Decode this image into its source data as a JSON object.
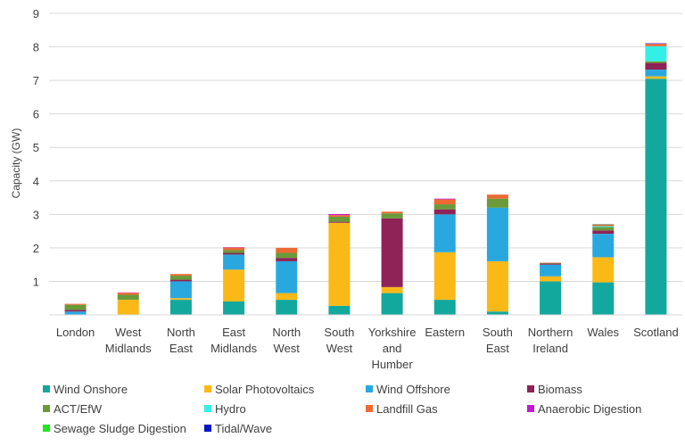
{
  "chart_data": {
    "type": "bar",
    "stacked": true,
    "title": "",
    "xlabel": "",
    "ylabel": "Capacity (GW)",
    "ylim": [
      0,
      9
    ],
    "yticks": [
      1,
      2,
      3,
      4,
      5,
      6,
      7,
      8,
      9
    ],
    "grid": true,
    "legend_position": "bottom",
    "categories": [
      [
        "London"
      ],
      [
        "West",
        "Midlands"
      ],
      [
        "North",
        "East"
      ],
      [
        "East",
        "Midlands"
      ],
      [
        "North",
        "West"
      ],
      [
        "South",
        "West"
      ],
      [
        "Yorkshire",
        "and",
        "Humber"
      ],
      [
        "Eastern"
      ],
      [
        "South",
        "East"
      ],
      [
        "Northern",
        "Ireland"
      ],
      [
        "Wales"
      ],
      [
        "Scotland"
      ]
    ],
    "series": [
      {
        "name": "Wind Onshore",
        "color": "#13a89e",
        "values": [
          0.0,
          0.0,
          0.45,
          0.4,
          0.45,
          0.27,
          0.65,
          0.45,
          0.1,
          1.0,
          0.97,
          7.05
        ]
      },
      {
        "name": "Solar Photovoltaics",
        "color": "#fbb917",
        "values": [
          0.0,
          0.45,
          0.05,
          0.95,
          0.2,
          2.48,
          0.18,
          1.42,
          1.5,
          0.15,
          0.75,
          0.07
        ]
      },
      {
        "name": "Wind Offshore",
        "color": "#29a8e0",
        "values": [
          0.1,
          0.0,
          0.5,
          0.45,
          0.95,
          0.0,
          0.0,
          1.13,
          1.6,
          0.35,
          0.7,
          0.2
        ]
      },
      {
        "name": "Biomass",
        "color": "#8e2357",
        "values": [
          0.05,
          0.0,
          0.05,
          0.05,
          0.1,
          0.03,
          2.05,
          0.15,
          0.0,
          0.03,
          0.1,
          0.2
        ]
      },
      {
        "name": "ACT/EfW",
        "color": "#6a9a3a",
        "values": [
          0.15,
          0.15,
          0.12,
          0.08,
          0.15,
          0.15,
          0.15,
          0.15,
          0.27,
          0.02,
          0.1,
          0.05
        ]
      },
      {
        "name": "Hydro",
        "color": "#33f0e6",
        "values": [
          0.0,
          0.0,
          0.0,
          0.0,
          0.0,
          0.0,
          0.0,
          0.0,
          0.0,
          0.0,
          0.03,
          0.45
        ]
      },
      {
        "name": "Landfill Gas",
        "color": "#ec6a34",
        "values": [
          0.03,
          0.06,
          0.05,
          0.08,
          0.15,
          0.05,
          0.05,
          0.15,
          0.12,
          0.01,
          0.04,
          0.07
        ]
      },
      {
        "name": "Anaerobic Digestion",
        "color": "#c21ad4",
        "values": [
          0.0,
          0.01,
          0.0,
          0.01,
          0.0,
          0.03,
          0.0,
          0.02,
          0.0,
          0.0,
          0.01,
          0.01
        ]
      },
      {
        "name": "Sewage Sludge Digestion",
        "color": "#1fe81f",
        "values": [
          0.0,
          0.0,
          0.0,
          0.0,
          0.0,
          0.0,
          0.0,
          0.0,
          0.0,
          0.0,
          0.01,
          0.0
        ]
      },
      {
        "name": "Tidal/Wave",
        "color": "#0a14c8",
        "values": [
          0.0,
          0.0,
          0.0,
          0.0,
          0.0,
          0.0,
          0.0,
          0.0,
          0.0,
          0.0,
          0.0,
          0.01
        ]
      }
    ]
  }
}
